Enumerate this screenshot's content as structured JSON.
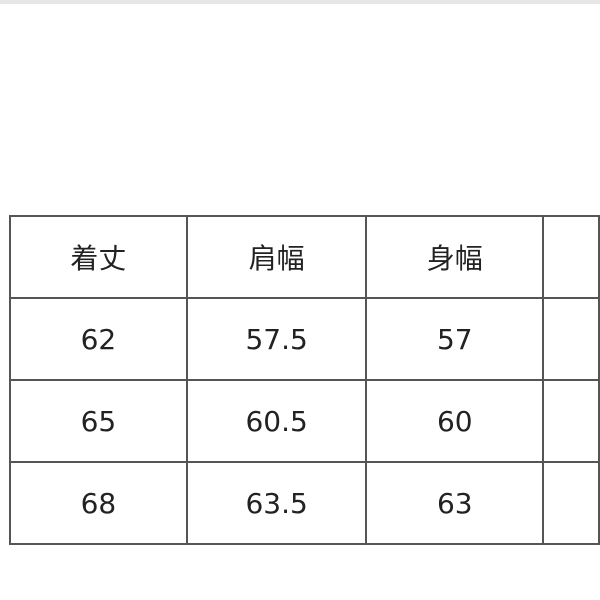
{
  "table": {
    "headers": [
      "着丈",
      "肩幅",
      "身幅"
    ],
    "rows": [
      [
        "62",
        "57.5",
        "57"
      ],
      [
        "65",
        "60.5",
        "60"
      ],
      [
        "68",
        "63.5",
        "63"
      ]
    ]
  }
}
